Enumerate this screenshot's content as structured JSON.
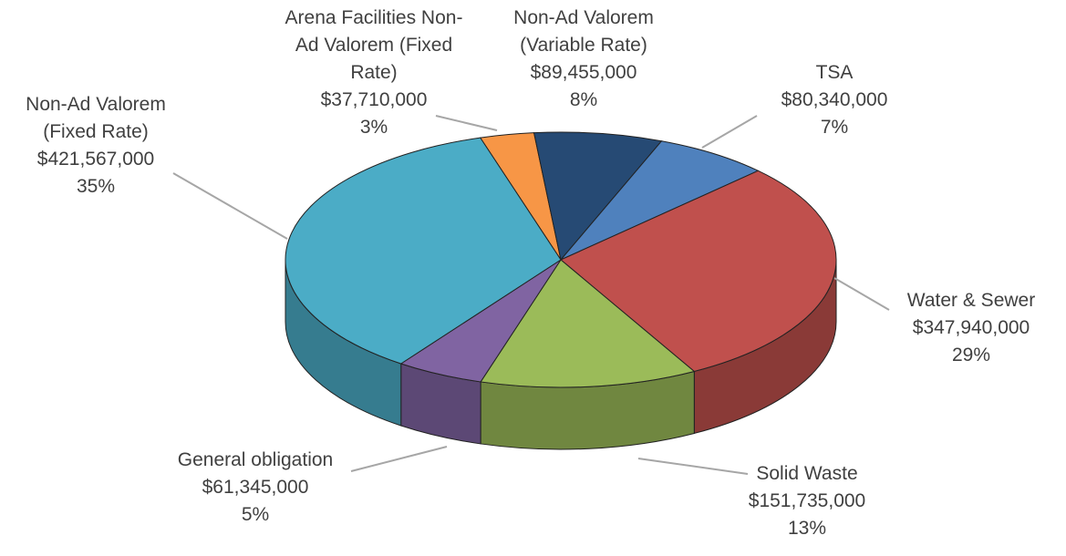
{
  "chart_data": {
    "type": "pie",
    "categories": [
      "Arena Facilities Non-Ad Valorem (Fixed Rate)",
      "Non-Ad Valorem (Variable Rate)",
      "TSA",
      "Water & Sewer",
      "Solid Waste",
      "General obligation",
      "Non-Ad Valorem (Fixed Rate)"
    ],
    "values": [
      37710000,
      89455000,
      80340000,
      347940000,
      151735000,
      61345000,
      421567000
    ],
    "value_labels": [
      "$37,710,000",
      "$89,455,000",
      "$80,340,000",
      "$347,940,000",
      "$151,735,000",
      "$61,345,000",
      "$421,567,000"
    ],
    "percent_labels": [
      "3%",
      "8%",
      "7%",
      "29%",
      "13%",
      "5%",
      "35%"
    ],
    "colors": [
      "#f79646",
      "#264a74",
      "#4f81bd",
      "#c0504d",
      "#9bbb59",
      "#8064a2",
      "#4bacc6"
    ]
  }
}
